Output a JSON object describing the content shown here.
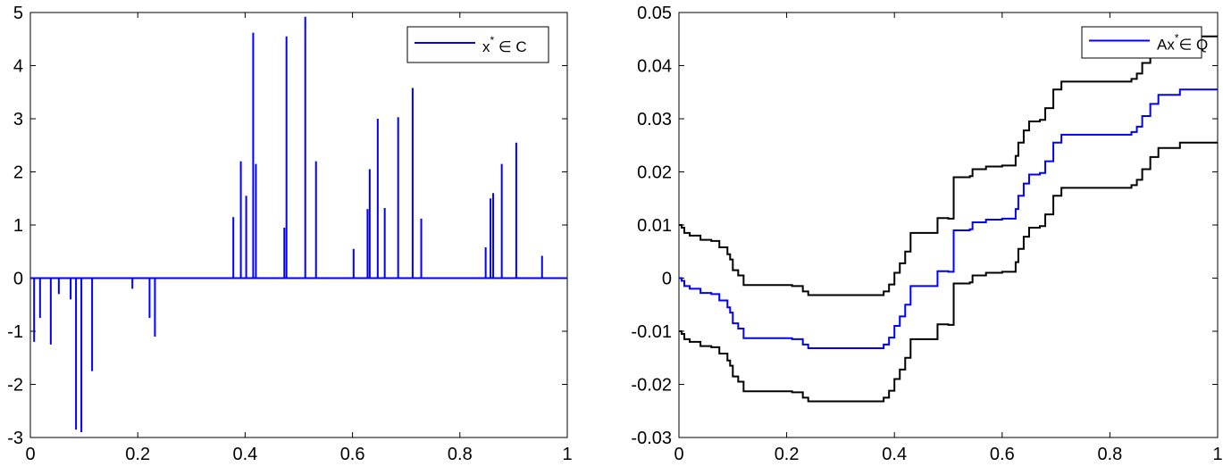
{
  "chart_data": [
    {
      "type": "line",
      "title": "",
      "xlabel": "",
      "ylabel": "",
      "xlim": [
        0,
        1
      ],
      "ylim": [
        -3,
        5
      ],
      "xticks": [
        0,
        0.2,
        0.4,
        0.6,
        0.8,
        1
      ],
      "xtick_labels": [
        "0",
        "0.2",
        "0.4",
        "0.6",
        "0.8",
        "1"
      ],
      "yticks": [
        -3,
        -2,
        -1,
        0,
        1,
        2,
        3,
        4,
        5
      ],
      "ytick_labels": [
        "-3",
        "-2",
        "-1",
        "0",
        "1",
        "2",
        "3",
        "4",
        "5"
      ],
      "grid": false,
      "legend": {
        "placement": "top-right",
        "entries": [
          {
            "text": "x",
            "sup": "*",
            "suffix": " ∈ C",
            "color": "#0000ff"
          }
        ]
      },
      "series": [
        {
          "color": "#0000ff",
          "style": "spikes",
          "spikes": [
            [
              0.007,
              -1.2
            ],
            [
              0.018,
              -0.75
            ],
            [
              0.038,
              -1.25
            ],
            [
              0.053,
              -0.3
            ],
            [
              0.075,
              -0.4
            ],
            [
              0.085,
              -2.85
            ],
            [
              0.095,
              -2.9
            ],
            [
              0.115,
              -1.75
            ],
            [
              0.19,
              -0.2
            ],
            [
              0.222,
              -0.75
            ],
            [
              0.232,
              -1.1
            ],
            [
              0.378,
              1.15
            ],
            [
              0.392,
              2.2
            ],
            [
              0.402,
              1.55
            ],
            [
              0.415,
              4.62
            ],
            [
              0.42,
              2.15
            ],
            [
              0.473,
              0.95
            ],
            [
              0.477,
              4.55
            ],
            [
              0.512,
              4.92
            ],
            [
              0.532,
              2.2
            ],
            [
              0.602,
              0.55
            ],
            [
              0.628,
              1.3
            ],
            [
              0.632,
              2.05
            ],
            [
              0.647,
              3.0
            ],
            [
              0.66,
              1.32
            ],
            [
              0.685,
              3.03
            ],
            [
              0.712,
              3.58
            ],
            [
              0.728,
              1.12
            ],
            [
              0.848,
              0.58
            ],
            [
              0.857,
              1.5
            ],
            [
              0.862,
              1.6
            ],
            [
              0.878,
              2.15
            ],
            [
              0.905,
              2.55
            ],
            [
              0.953,
              0.42
            ]
          ]
        }
      ]
    },
    {
      "type": "line",
      "title": "",
      "xlabel": "",
      "ylabel": "",
      "xlim": [
        0,
        1
      ],
      "ylim": [
        -0.03,
        0.05
      ],
      "xticks": [
        0,
        0.2,
        0.4,
        0.6,
        0.8,
        1
      ],
      "xtick_labels": [
        "0",
        "0.2",
        "0.4",
        "0.6",
        "0.8",
        "1"
      ],
      "yticks": [
        -0.03,
        -0.02,
        -0.01,
        0,
        0.01,
        0.02,
        0.03,
        0.04,
        0.05
      ],
      "ytick_labels": [
        "-0.03",
        "-0.02",
        "-0.01",
        "0",
        "0.01",
        "0.02",
        "0.03",
        "0.04",
        "0.05"
      ],
      "grid": false,
      "legend": {
        "placement": "top-right",
        "entries": [
          {
            "text": "Ax",
            "sup": "*",
            "suffix": "∈ Q",
            "color": "#0000ff"
          }
        ]
      },
      "series": [
        {
          "color": "#0000ff",
          "style": "step",
          "points": [
            [
              0,
              0
            ],
            [
              0.005,
              -0.0005
            ],
            [
              0.01,
              -0.0015
            ],
            [
              0.02,
              -0.002
            ],
            [
              0.04,
              -0.0028
            ],
            [
              0.06,
              -0.003
            ],
            [
              0.075,
              -0.0042
            ],
            [
              0.09,
              -0.0055
            ],
            [
              0.095,
              -0.0065
            ],
            [
              0.1,
              -0.0085
            ],
            [
              0.11,
              -0.0095
            ],
            [
              0.12,
              -0.0113
            ],
            [
              0.21,
              -0.0115
            ],
            [
              0.23,
              -0.0125
            ],
            [
              0.24,
              -0.0132
            ],
            [
              0.37,
              -0.0132
            ],
            [
              0.38,
              -0.0125
            ],
            [
              0.39,
              -0.0112
            ],
            [
              0.4,
              -0.009
            ],
            [
              0.41,
              -0.0072
            ],
            [
              0.42,
              -0.005
            ],
            [
              0.43,
              -0.0015
            ],
            [
              0.475,
              -0.0015
            ],
            [
              0.48,
              0.0013
            ],
            [
              0.5,
              0.0012
            ],
            [
              0.51,
              0.009
            ],
            [
              0.54,
              0.0092
            ],
            [
              0.545,
              0.0105
            ],
            [
              0.57,
              0.011
            ],
            [
              0.6,
              0.0112
            ],
            [
              0.625,
              0.013
            ],
            [
              0.63,
              0.0155
            ],
            [
              0.64,
              0.0178
            ],
            [
              0.65,
              0.0195
            ],
            [
              0.67,
              0.0198
            ],
            [
              0.68,
              0.022
            ],
            [
              0.695,
              0.0255
            ],
            [
              0.71,
              0.027
            ],
            [
              0.84,
              0.0275
            ],
            [
              0.85,
              0.0285
            ],
            [
              0.86,
              0.0305
            ],
            [
              0.875,
              0.0328
            ],
            [
              0.89,
              0.0345
            ],
            [
              0.93,
              0.0355
            ],
            [
              1,
              0.0355
            ]
          ]
        },
        {
          "color": "#000000",
          "style": "step",
          "points": [
            [
              0,
              0.01
            ],
            [
              0.005,
              0.0095
            ],
            [
              0.01,
              0.0085
            ],
            [
              0.02,
              0.008
            ],
            [
              0.04,
              0.0072
            ],
            [
              0.06,
              0.007
            ],
            [
              0.075,
              0.0058
            ],
            [
              0.09,
              0.0045
            ],
            [
              0.095,
              0.0035
            ],
            [
              0.1,
              0.0015
            ],
            [
              0.11,
              0.0005
            ],
            [
              0.12,
              -0.0013
            ],
            [
              0.21,
              -0.0015
            ],
            [
              0.23,
              -0.0025
            ],
            [
              0.24,
              -0.0032
            ],
            [
              0.37,
              -0.0032
            ],
            [
              0.38,
              -0.0025
            ],
            [
              0.39,
              -0.0012
            ],
            [
              0.4,
              0.001
            ],
            [
              0.41,
              0.0028
            ],
            [
              0.42,
              0.005
            ],
            [
              0.43,
              0.0085
            ],
            [
              0.475,
              0.0085
            ],
            [
              0.48,
              0.0113
            ],
            [
              0.5,
              0.0112
            ],
            [
              0.51,
              0.019
            ],
            [
              0.54,
              0.0192
            ],
            [
              0.545,
              0.0205
            ],
            [
              0.57,
              0.021
            ],
            [
              0.6,
              0.0212
            ],
            [
              0.625,
              0.023
            ],
            [
              0.63,
              0.0255
            ],
            [
              0.64,
              0.0278
            ],
            [
              0.65,
              0.0295
            ],
            [
              0.67,
              0.0298
            ],
            [
              0.68,
              0.032
            ],
            [
              0.695,
              0.0355
            ],
            [
              0.71,
              0.037
            ],
            [
              0.84,
              0.0375
            ],
            [
              0.85,
              0.0385
            ],
            [
              0.86,
              0.0405
            ],
            [
              0.875,
              0.0428
            ],
            [
              0.89,
              0.0445
            ],
            [
              0.93,
              0.0455
            ],
            [
              1,
              0.0455
            ]
          ]
        },
        {
          "color": "#000000",
          "style": "step",
          "points": [
            [
              0,
              -0.01
            ],
            [
              0.005,
              -0.0105
            ],
            [
              0.01,
              -0.0115
            ],
            [
              0.02,
              -0.012
            ],
            [
              0.04,
              -0.0128
            ],
            [
              0.06,
              -0.013
            ],
            [
              0.075,
              -0.0142
            ],
            [
              0.09,
              -0.0155
            ],
            [
              0.095,
              -0.0165
            ],
            [
              0.1,
              -0.0185
            ],
            [
              0.11,
              -0.0195
            ],
            [
              0.12,
              -0.0213
            ],
            [
              0.21,
              -0.0215
            ],
            [
              0.23,
              -0.0225
            ],
            [
              0.24,
              -0.0232
            ],
            [
              0.37,
              -0.0232
            ],
            [
              0.38,
              -0.0225
            ],
            [
              0.39,
              -0.0212
            ],
            [
              0.4,
              -0.019
            ],
            [
              0.41,
              -0.0172
            ],
            [
              0.42,
              -0.015
            ],
            [
              0.43,
              -0.0115
            ],
            [
              0.475,
              -0.0115
            ],
            [
              0.48,
              -0.0087
            ],
            [
              0.5,
              -0.0088
            ],
            [
              0.51,
              -0.001
            ],
            [
              0.54,
              -0.0008
            ],
            [
              0.545,
              0.0005
            ],
            [
              0.57,
              0.001
            ],
            [
              0.6,
              0.0012
            ],
            [
              0.625,
              0.003
            ],
            [
              0.63,
              0.0055
            ],
            [
              0.64,
              0.0078
            ],
            [
              0.65,
              0.0095
            ],
            [
              0.67,
              0.0098
            ],
            [
              0.68,
              0.012
            ],
            [
              0.695,
              0.0155
            ],
            [
              0.71,
              0.017
            ],
            [
              0.84,
              0.0175
            ],
            [
              0.85,
              0.0185
            ],
            [
              0.86,
              0.0205
            ],
            [
              0.875,
              0.0228
            ],
            [
              0.89,
              0.0245
            ],
            [
              0.93,
              0.0255
            ],
            [
              1,
              0.0255
            ]
          ]
        }
      ]
    }
  ]
}
